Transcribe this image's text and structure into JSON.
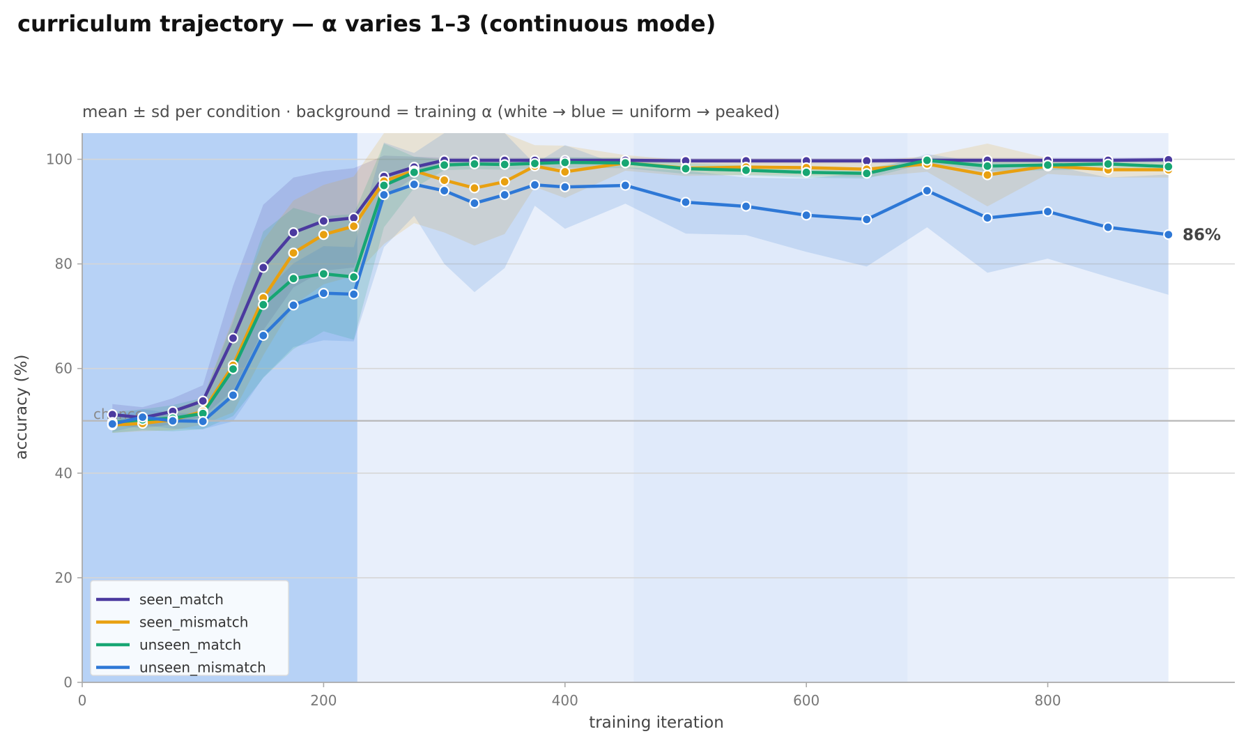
{
  "chart_data": {
    "type": "line",
    "title": "curriculum trajectory — α varies 1–3 (continuous mode)",
    "subtitle": "mean ± sd per condition · background = training α (white → blue = uniform → peaked)",
    "xlabel": "training iteration",
    "ylabel": "accuracy (%)",
    "xlim": [
      0,
      955
    ],
    "ylim": [
      0,
      105
    ],
    "xticks": [
      0,
      200,
      400,
      600,
      800
    ],
    "yticks": [
      0,
      20,
      40,
      60,
      80,
      100
    ],
    "grid": "horizontal",
    "legend_position": "lower-left",
    "reference_line": {
      "y": 50,
      "label": "chance"
    },
    "end_label": "86%",
    "background_bands": [
      {
        "x0": 0,
        "x1": 228,
        "color": "#b7d2f6"
      },
      {
        "x0": 228,
        "x1": 457,
        "color": "#e8effb"
      },
      {
        "x0": 457,
        "x1": 684,
        "color": "#e0eafa"
      },
      {
        "x0": 684,
        "x1": 900,
        "color": "#e8effb"
      }
    ],
    "x": [
      25,
      50,
      75,
      100,
      125,
      150,
      175,
      200,
      225,
      250,
      275,
      300,
      325,
      350,
      375,
      400,
      450,
      500,
      550,
      600,
      650,
      700,
      750,
      800,
      850,
      900
    ],
    "series": [
      {
        "name": "seen_match",
        "color": "#4b3a9f",
        "values": [
          51.2,
          50.6,
          51.8,
          53.8,
          65.8,
          79.3,
          86.0,
          88.2,
          88.8,
          96.7,
          98.5,
          99.8,
          99.8,
          99.8,
          99.8,
          99.8,
          99.8,
          99.7,
          99.7,
          99.7,
          99.7,
          99.8,
          99.8,
          99.8,
          99.8,
          99.9
        ],
        "sd": [
          2.0,
          2.0,
          2.5,
          3.0,
          10.0,
          12.0,
          10.5,
          9.5,
          9.5,
          4.0,
          2.0,
          0.5,
          0.5,
          0.5,
          0.5,
          0.5,
          0.5,
          0.5,
          0.5,
          0.5,
          0.5,
          0.5,
          0.5,
          0.5,
          0.5,
          0.5
        ]
      },
      {
        "name": "seen_mismatch",
        "color": "#e8a010",
        "values": [
          49.2,
          49.5,
          50.2,
          51.8,
          60.6,
          73.5,
          82.1,
          85.6,
          87.2,
          95.8,
          97.8,
          96.0,
          94.5,
          95.7,
          98.7,
          97.6,
          99.3,
          98.3,
          98.5,
          98.4,
          98.1,
          99.1,
          97.0,
          98.7,
          98.0,
          98.0
        ],
        "sd": [
          1.5,
          1.5,
          2.0,
          2.5,
          9.0,
          11.0,
          10.0,
          9.5,
          9.5,
          12.0,
          10.0,
          10.0,
          11.0,
          10.0,
          4.0,
          5.0,
          1.5,
          1.5,
          1.5,
          1.5,
          1.5,
          1.5,
          6.0,
          1.5,
          1.5,
          1.5
        ]
      },
      {
        "name": "unseen_match",
        "color": "#17a673",
        "values": [
          49.7,
          50.2,
          50.5,
          51.4,
          59.9,
          72.2,
          77.2,
          78.1,
          77.5,
          95.0,
          97.5,
          98.9,
          99.1,
          99.0,
          99.2,
          99.4,
          99.3,
          98.2,
          97.9,
          97.5,
          97.3,
          99.8,
          98.7,
          98.9,
          99.1,
          98.6
        ],
        "sd": [
          2.0,
          2.0,
          2.5,
          3.0,
          9.0,
          14.0,
          13.5,
          11.0,
          12.0,
          8.0,
          3.0,
          1.0,
          1.0,
          1.0,
          1.0,
          1.0,
          1.0,
          1.0,
          1.0,
          1.0,
          1.0,
          0.5,
          1.0,
          1.0,
          1.0,
          1.0
        ]
      },
      {
        "name": "unseen_mismatch",
        "color": "#2e78d6",
        "values": [
          49.4,
          50.7,
          50.0,
          49.9,
          54.9,
          66.3,
          72.1,
          74.4,
          74.2,
          93.2,
          95.2,
          94.0,
          91.6,
          93.2,
          95.1,
          94.7,
          95.0,
          91.8,
          91.0,
          89.3,
          88.5,
          94.0,
          88.8,
          90.0,
          87.0,
          85.6
        ],
        "sd": [
          1.5,
          1.5,
          1.5,
          1.5,
          5.0,
          8.0,
          8.0,
          9.0,
          9.0,
          10.0,
          6.0,
          14.0,
          17.0,
          14.0,
          4.0,
          8.0,
          3.5,
          6.0,
          5.5,
          7.0,
          9.0,
          7.0,
          10.5,
          9.0,
          9.5,
          11.5
        ]
      }
    ]
  }
}
